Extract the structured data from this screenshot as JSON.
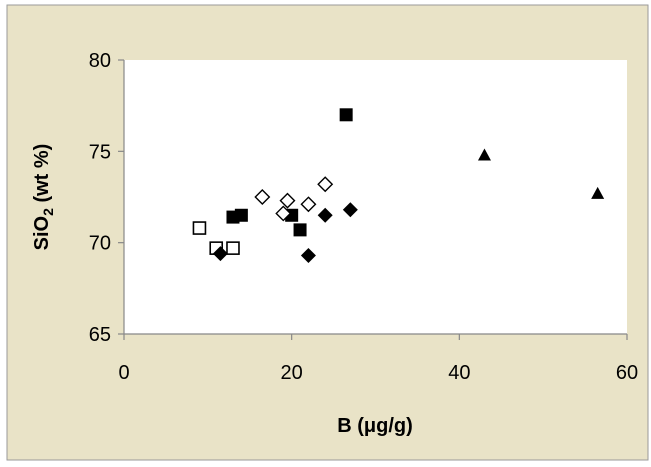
{
  "colors": {
    "background": "#ffffff",
    "chart_area": "#e9e3c7",
    "plot_area": "#ffffff",
    "axis": "#888888",
    "marker": "#000000"
  },
  "chart_data": {
    "type": "scatter",
    "title": "",
    "xlabel": "B (μg/g)",
    "ylabel_main": "SiO",
    "ylabel_sub": "2",
    "ylabel_rest": " (wt %)",
    "xlim": [
      0,
      60
    ],
    "ylim": [
      65,
      80
    ],
    "xticks": [
      0,
      20,
      40,
      60
    ],
    "yticks": [
      65,
      70,
      75,
      80
    ],
    "grid": false,
    "legend": "none",
    "series": [
      {
        "marker": "filled-square",
        "points": [
          [
            13,
            71.4
          ],
          [
            14,
            71.5
          ],
          [
            20,
            71.5
          ],
          [
            21,
            70.7
          ],
          [
            26.5,
            77
          ]
        ]
      },
      {
        "marker": "open-square",
        "points": [
          [
            9,
            70.8
          ],
          [
            11,
            69.7
          ],
          [
            13,
            69.7
          ]
        ]
      },
      {
        "marker": "open-diamond",
        "points": [
          [
            16.5,
            72.5
          ],
          [
            19,
            71.6
          ],
          [
            19.5,
            72.3
          ],
          [
            22,
            72.1
          ],
          [
            24,
            73.2
          ]
        ]
      },
      {
        "marker": "filled-diamond",
        "points": [
          [
            11.5,
            69.4
          ],
          [
            22,
            69.3
          ],
          [
            24,
            71.5
          ],
          [
            27,
            71.8
          ]
        ]
      },
      {
        "marker": "filled-triangle",
        "points": [
          [
            43,
            74.8
          ],
          [
            56.5,
            72.7
          ]
        ]
      }
    ]
  }
}
